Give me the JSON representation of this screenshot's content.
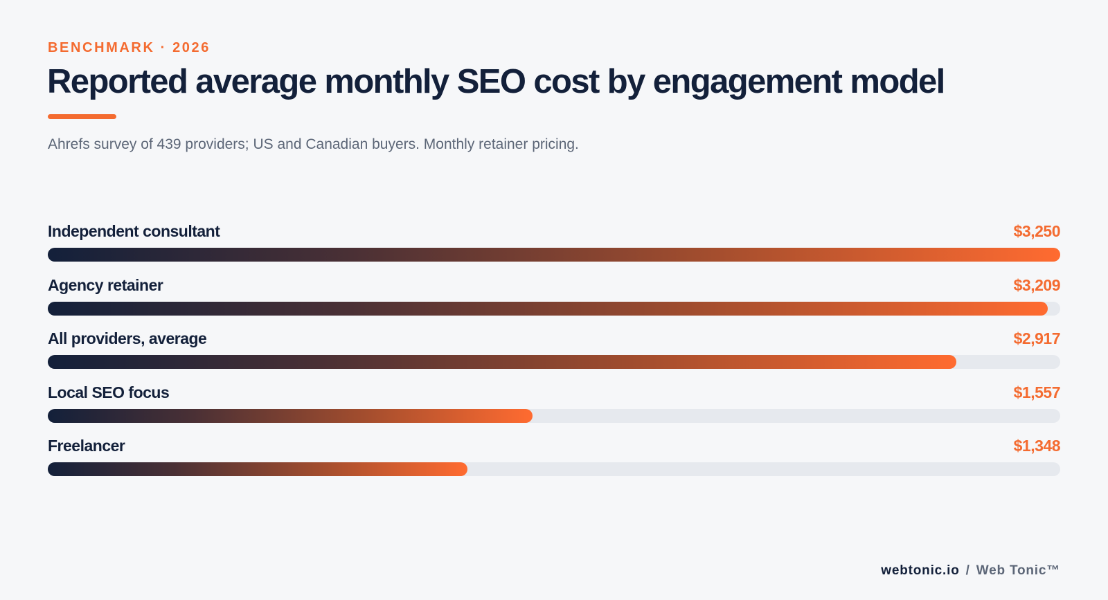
{
  "header": {
    "eyebrow": "BENCHMARK · 2026",
    "title": "Reported average monthly SEO cost by engagement model",
    "subtitle": "Ahrefs survey of 439 providers; US and Canadian buyers. Monthly retainer pricing."
  },
  "chart_data": {
    "type": "bar",
    "orientation": "horizontal",
    "title": "Reported average monthly SEO cost by engagement model",
    "subtitle": "Ahrefs survey of 439 providers; US and Canadian buyers. Monthly retainer pricing.",
    "categories": [
      "Independent consultant",
      "Agency retainer",
      "All providers, average",
      "Local SEO focus",
      "Freelancer"
    ],
    "values": [
      3250,
      3209,
      2917,
      1557,
      1348
    ],
    "value_labels": [
      "$3,250",
      "$3,209",
      "$2,917",
      "$1,557",
      "$1,348"
    ],
    "xlim": [
      0,
      3250
    ],
    "grid": false,
    "legend": "none",
    "colors": {
      "bar_start": "#13203a",
      "bar_end": "#ff6b30",
      "track": "#e6e9ee",
      "value_text": "#f46b30"
    }
  },
  "footer": {
    "domain": "webtonic.io",
    "separator": "/",
    "brand": "Web Tonic™"
  },
  "colors": {
    "accent": "#f46b30",
    "navy": "#13203a",
    "muted": "#5c6677",
    "background": "#f6f7f9"
  }
}
